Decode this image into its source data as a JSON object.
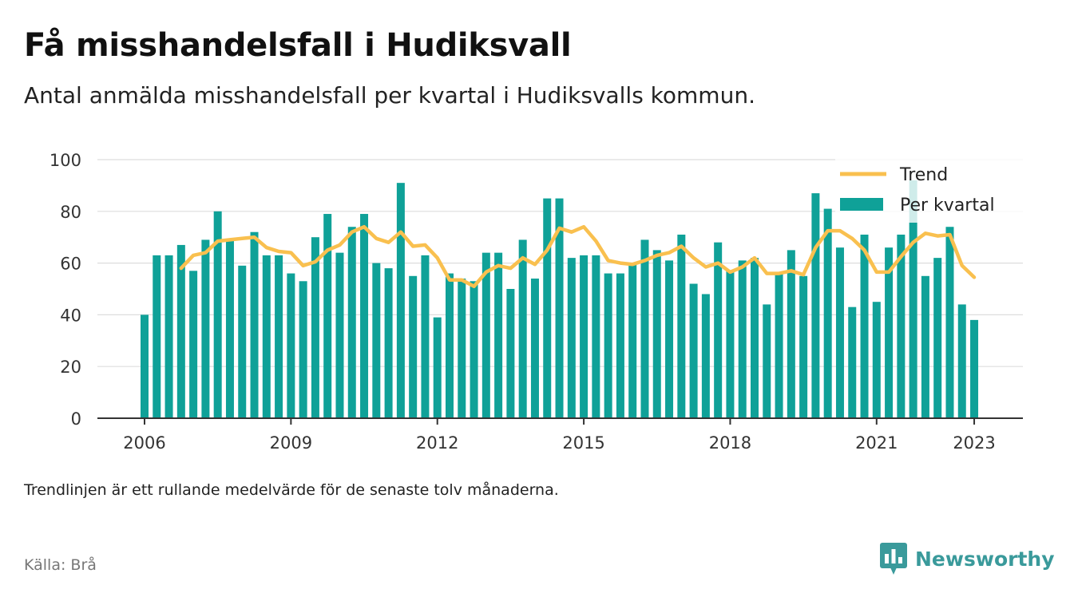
{
  "title": "Få misshandelsfall i Hudiksvall",
  "subtitle": "Antal anmälda misshandelsfall per kvartal i Hudiksvalls kommun.",
  "note": "Trendlinjen är ett rullande medelvärde för de senaste tolv månaderna.",
  "source": "Källa: Brå",
  "brand": {
    "name": "Newsworthy",
    "icon": "bar-chart-bubble-icon"
  },
  "colors": {
    "bar": "#0fa198",
    "trend": "#f9c04f",
    "grid": "#dddddd",
    "axis": "#333333",
    "brand": "#3a9a9b"
  },
  "chart_data": {
    "type": "bar",
    "x_start": "2006 Q1",
    "x_step": "quarter",
    "x_ticks": [
      "2006",
      "2009",
      "2012",
      "2015",
      "2018",
      "2021",
      "2023"
    ],
    "y_ticks": [
      "0",
      "20",
      "40",
      "60",
      "80",
      "100"
    ],
    "ylim": [
      0,
      100
    ],
    "grid": true,
    "legend_position": "top-right",
    "series": [
      {
        "name": "Per kvartal",
        "type": "bar",
        "values": [
          40,
          63,
          63,
          67,
          57,
          69,
          80,
          69,
          59,
          72,
          63,
          63,
          56,
          53,
          70,
          79,
          64,
          74,
          79,
          60,
          58,
          91,
          55,
          63,
          39,
          56,
          54,
          53,
          64,
          64,
          50,
          69,
          54,
          85,
          85,
          62,
          63,
          63,
          56,
          56,
          60,
          69,
          65,
          61,
          71,
          52,
          48,
          68,
          57,
          61,
          62,
          44,
          56,
          65,
          55,
          87,
          81,
          66,
          43,
          71,
          45,
          66,
          71,
          92,
          55,
          62,
          74,
          44,
          38
        ]
      },
      {
        "name": "Trend",
        "type": "line",
        "start_index": 3,
        "values": [
          58,
          63,
          64,
          68.5,
          69,
          69.5,
          70,
          66,
          64.5,
          64,
          59,
          60.5,
          65,
          67,
          72,
          74,
          69.5,
          68,
          72,
          66.5,
          67,
          62,
          53.5,
          53.5,
          51,
          56.5,
          59,
          58,
          62,
          59.5,
          65,
          73.5,
          72,
          74,
          68.5,
          61,
          60,
          59.5,
          61,
          63,
          64,
          66.5,
          62,
          58.5,
          60,
          56.5,
          58.5,
          62,
          56,
          56,
          57,
          55.5,
          66,
          72.5,
          72.5,
          69.5,
          65,
          56.5,
          56.5,
          62.5,
          68,
          71.5,
          70.5,
          71,
          59,
          54.5
        ]
      }
    ]
  }
}
